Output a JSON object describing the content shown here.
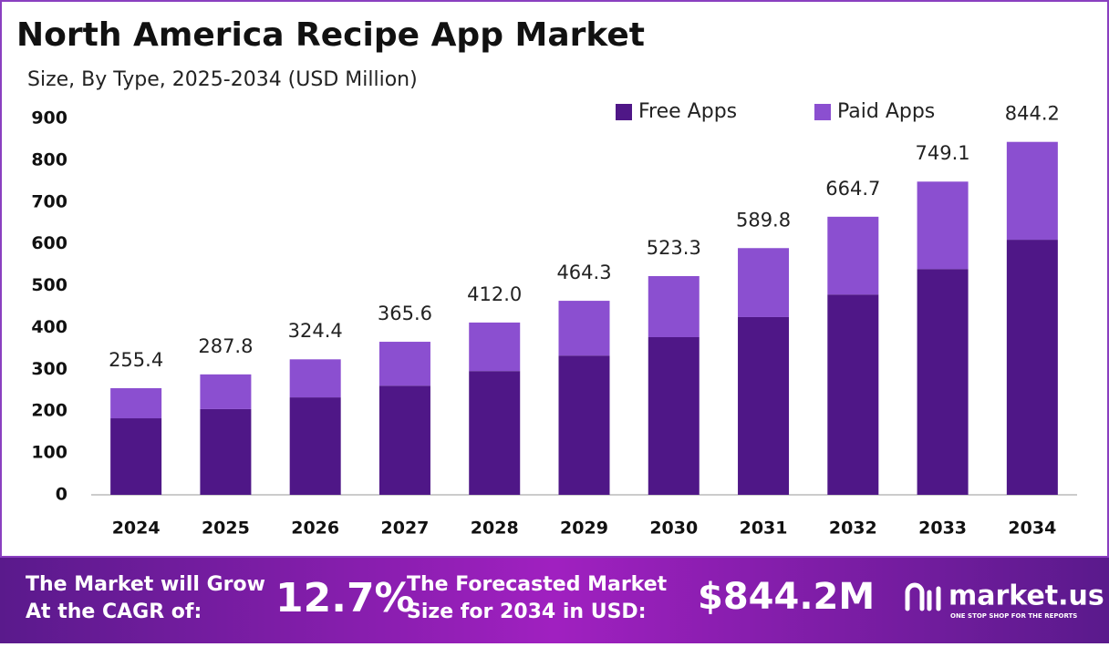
{
  "chart_data": {
    "type": "stacked-bar",
    "title": "North America Recipe App Market",
    "subtitle": "Size, By Type, 2025-2034 (USD Million)",
    "categories": [
      "2024",
      "2025",
      "2026",
      "2027",
      "2028",
      "2029",
      "2030",
      "2031",
      "2032",
      "2033",
      "2034"
    ],
    "series": [
      {
        "name": "Free Apps",
        "color": "#4f1787",
        "values": [
          183,
          205,
          233,
          261,
          296,
          333,
          377,
          425,
          479,
          540,
          610
        ]
      },
      {
        "name": "Paid Apps",
        "color": "#8b4fd0",
        "values": [
          72,
          83,
          91,
          105,
          116,
          131,
          146,
          165,
          186,
          209,
          234
        ]
      }
    ],
    "totals": {
      "values": [
        255.4,
        287.8,
        324.4,
        365.6,
        412.0,
        464.3,
        523.3,
        589.8,
        664.7,
        749.1,
        844.2
      ],
      "value_labels": [
        "255.4",
        "287.8",
        "324.4",
        "365.6",
        "412.0",
        "464.3",
        "523.3",
        "589.8",
        "664.7",
        "749.1",
        "844.2"
      ]
    },
    "ylim": [
      0,
      900
    ],
    "yticks": [
      0,
      100,
      200,
      300,
      400,
      500,
      600,
      700,
      800,
      900
    ],
    "grid": false,
    "legend": "top-right"
  },
  "footer": {
    "cagr_line1": "The Market will Grow",
    "cagr_line2": "At the CAGR of:",
    "cagr_value": "12.7%",
    "forecast_line1": "The Forecasted Market",
    "forecast_line2": "Size for 2034 in USD:",
    "forecast_value": "$844.2M",
    "logo": "market.us",
    "logo_tagline": "ONE STOP SHOP FOR THE REPORTS"
  }
}
